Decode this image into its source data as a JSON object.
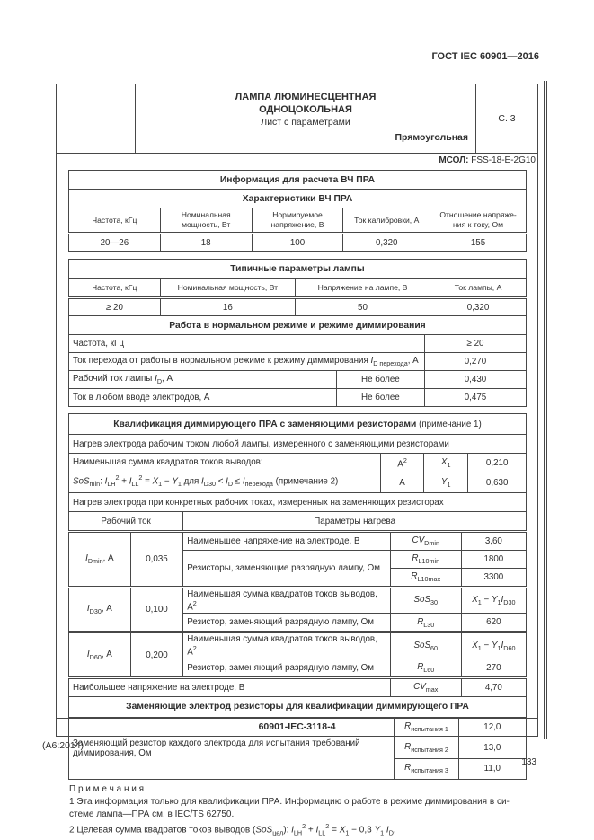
{
  "page": {
    "standard_ref": "ГОСТ IEC 60901—2016",
    "amendment": "(А6:2014)",
    "page_number": "133"
  },
  "sheet_header": {
    "title_line1": "ЛАМПА ЛЮМИНЕСЦЕНТНАЯ",
    "title_line2": "ОДНОЦОКОЛЬНАЯ",
    "subtitle": "Лист с параметрами",
    "shape": "Прямоугольная",
    "page_ref": "С. 3",
    "mcol_label": "МСОЛ:",
    "mcol_value": "FSS-18-E-2G10"
  },
  "info_table": {
    "title": "Информация для расчета ВЧ ПРА",
    "subtitle": "Характеристики ВЧ ПРА",
    "headers": [
      "Частота, кГц",
      "Номинальная мощность, Вт",
      "Нормируемое напряжение, В",
      "Ток калибровки, А"
    ],
    "header5_html": "Отношение напряже-<br>ния к току, Ом",
    "values": [
      "20—26",
      "18",
      "100",
      "0,320",
      "155"
    ]
  },
  "typical_table": {
    "title": "Типичные параметры лампы",
    "headers": [
      "Частота, кГц",
      "Номинальная мощность, Вт",
      "Напряжение на лампе, В",
      "Ток лампы, А"
    ],
    "values": [
      "≥ 20",
      "16",
      "50",
      "0,320"
    ]
  },
  "dimming_section": {
    "title": "Работа в нормальном режиме и режиме диммирования",
    "rows": [
      {
        "label": "Частота, кГц",
        "value": "≥ 20"
      },
      {
        "label_html": "Ток перехода от работы в нормальном режиме к режиму диммирования <i>I</i><sub>D перехода</sub>, А",
        "value": "0,270"
      },
      {
        "label_html": "Рабочий ток лампы <i>I</i><sub>D</sub>, А",
        "limit": "Не более",
        "value": "0,430"
      },
      {
        "label": "Ток в любом вводе электродов, А",
        "limit": "Не более",
        "value": "0,475"
      }
    ]
  },
  "qualification": {
    "title": "Квалификация диммирующего ПРА с заменяющими резисторами",
    "title_note": " (примечание 1)",
    "heating_any": "Нагрев электрода рабочим током любой лампы, измеренного с заменяющими резисторами",
    "sos_label": "Наименьшая сумма квадратов токов выводов:",
    "sos_formula_html": "<i>SoS</i><sub>min</sub>: <i>I</i><sub>LH</sub><sup>2</sup> + <i>I</i><sub>LL</sub><sup>2</sup> = <i>X</i><sub>1</sub> − <i>Y</i><sub>1</sub> для <i>I</i><sub>D30</sub> &lt; <i>I</i><sub>D</sub> ≤ <i>I</i><sub>перехода</sub> (примечание 2)",
    "sos_rows": [
      {
        "unit_html": "А<sup>2</sup>",
        "symbol_html": "<i>X</i><sub>1</sub>",
        "value": "0,210"
      },
      {
        "unit_html": "А",
        "symbol_html": "<i>Y</i><sub>1</sub>",
        "value": "0,630"
      }
    ],
    "heating_specific": "Нагрев электрода при конкретных рабочих токах, измеренных на заменяющих резисторах",
    "heat_table": {
      "col_current": "Рабочий ток",
      "col_params": "Параметры нагрева",
      "groups": [
        {
          "current_html": "<i>I</i><sub>Dmin</sub>, А",
          "current_value": "0,035",
          "rows": [
            {
              "desc": "Наименьшее напряжение на электроде, В",
              "symbol_html": "<i>CV</i><sub>Dmin</sub>",
              "value_html": "3,60"
            },
            {
              "desc": "Резисторы, заменяющие разрядную лампу, Ом",
              "symbol_html": "<i>R</i><sub>L10min</sub>",
              "value_html": "1800"
            },
            {
              "symbol_html": "<i>R</i><sub>L10max</sub>",
              "value_html": "3300"
            }
          ]
        },
        {
          "current_html": "<i>I</i><sub>D30</sub>, А",
          "current_value": "0,100",
          "rows": [
            {
              "desc_html": "Наименьшая сумма квадратов токов выводов, А<sup>2</sup>",
              "symbol_html": "<i>SoS</i><sub>30</sub>",
              "value_html": "<i>X</i><sub>1</sub> − <i>Y</i><sub>1</sub><i>I</i><sub>D30</sub>"
            },
            {
              "desc": "Резистор, заменяющий разрядную лампу, Ом",
              "symbol_html": "<i>R</i><sub>L30</sub>",
              "value_html": "620"
            }
          ]
        },
        {
          "current_html": "<i>I</i><sub>D60</sub>, А",
          "current_value": "0,200",
          "rows": [
            {
              "desc_html": "Наименьшая сумма квадратов токов выводов, А<sup>2</sup>",
              "symbol_html": "<i>SoS</i><sub>60</sub>",
              "value_html": "<i>X</i><sub>1</sub> − <i>Y</i><sub>1</sub><i>I</i><sub>D60</sub>"
            },
            {
              "desc": "Резистор, заменяющий разрядную лампу, Ом",
              "symbol_html": "<i>R</i><sub>L60</sub>",
              "value_html": "270"
            }
          ]
        }
      ],
      "max_row": {
        "label": "Наибольшее напряжение на электроде, В",
        "symbol_html": "<i>CV</i><sub>max</sub>",
        "value": "4,70"
      }
    },
    "resistors": {
      "title": "Заменяющие электрод резисторы для квалификации диммирующего ПРА",
      "label_html": "Заменяющий резистор каждого электрода для испытания требований<br>диммирования, Ом",
      "rows": [
        {
          "symbol_html": "<i>R</i><sub>испытания 1</sub>",
          "value": "12,0"
        },
        {
          "symbol_html": "<i>R</i><sub>испытания 2</sub>",
          "value": "13,0"
        },
        {
          "symbol_html": "<i>R</i><sub>испытания 3</sub>",
          "value": "11,0"
        }
      ]
    }
  },
  "notes": {
    "title": "П р и м е ч а н и я",
    "note1_html": "1 Эта информация только для квалификации ПРА. Информацию о работе в режиме диммирования в си-<br>стеме лампа—ПРА см. в IEC/TS 62750.",
    "note2_html": "2 Целевая сумма квадратов токов выводов (<i>SoS</i><sub>цел</sub>): <i>I</i><sub>LH</sub><sup>2</sup> + <i>I</i><sub>LL</sub><sup>2</sup> = <i>X</i><sub>1</sub> − 0,3 <i>Y</i><sub>1</sub> <i>I</i><sub>D</sub>."
  },
  "footer": {
    "doc_code": "60901-IEC-3118-4"
  }
}
